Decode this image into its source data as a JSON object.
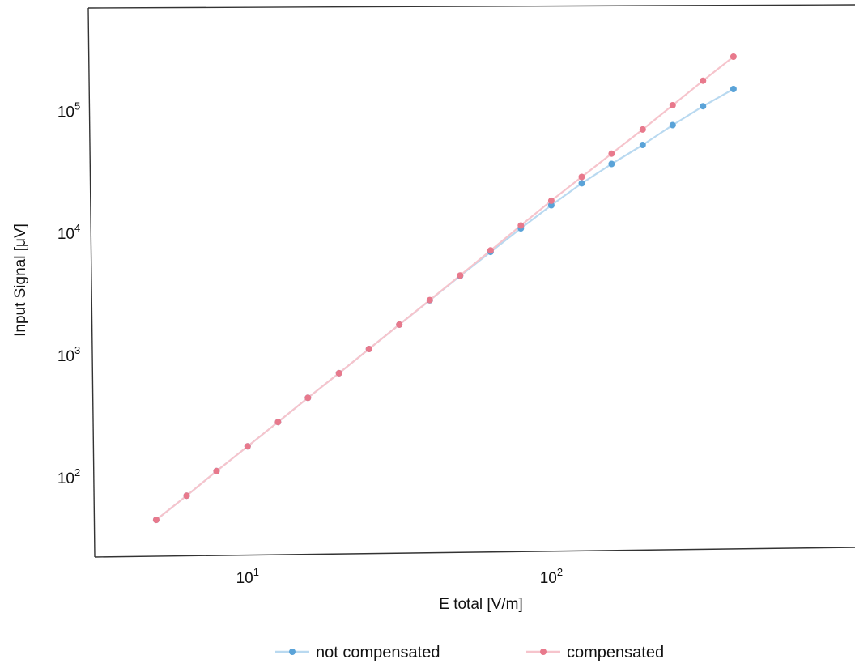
{
  "chart_data": {
    "type": "line",
    "title": "",
    "xlabel": "E total [V/m]",
    "ylabel": "Input Signal [μV]",
    "xscale": "log",
    "yscale": "log",
    "xlim": [
      3.1,
      1000
    ],
    "ylim": [
      23,
      700000
    ],
    "x_ticks": [
      {
        "value": 10,
        "base": "10",
        "exp": "1"
      },
      {
        "value": 100,
        "base": "10",
        "exp": "2"
      }
    ],
    "y_ticks": [
      {
        "value": 100,
        "base": "10",
        "exp": "2"
      },
      {
        "value": 1000,
        "base": "10",
        "exp": "3"
      },
      {
        "value": 10000,
        "base": "10",
        "exp": "4"
      },
      {
        "value": 100000,
        "base": "10",
        "exp": "5"
      }
    ],
    "grid": false,
    "legend_position": "bottom",
    "series": [
      {
        "name": "not compensated",
        "color": "#5aa3d8",
        "line_color": "#b9d9f0",
        "points": [
          [
            5.0,
            45
          ],
          [
            6.3,
            71
          ],
          [
            7.9,
            113
          ],
          [
            10.0,
            180
          ],
          [
            12.6,
            285
          ],
          [
            15.8,
            450
          ],
          [
            20.0,
            715
          ],
          [
            25.1,
            1130
          ],
          [
            31.6,
            1790
          ],
          [
            39.8,
            2830
          ],
          [
            50.1,
            4480
          ],
          [
            63.1,
            7050
          ],
          [
            79.4,
            11000
          ],
          [
            100,
            17000
          ],
          [
            126,
            25700
          ],
          [
            158,
            37000
          ],
          [
            200,
            53000
          ],
          [
            251,
            77000
          ],
          [
            316,
            110000
          ],
          [
            398,
            152000
          ]
        ]
      },
      {
        "name": "compensated",
        "color": "#e8798c",
        "line_color": "#f6c4cc",
        "points": [
          [
            5.0,
            45
          ],
          [
            6.3,
            71
          ],
          [
            7.9,
            113
          ],
          [
            10.0,
            180
          ],
          [
            12.6,
            285
          ],
          [
            15.8,
            450
          ],
          [
            20.0,
            715
          ],
          [
            25.1,
            1130
          ],
          [
            31.6,
            1790
          ],
          [
            39.8,
            2840
          ],
          [
            50.1,
            4520
          ],
          [
            63.1,
            7250
          ],
          [
            79.4,
            11600
          ],
          [
            100,
            18500
          ],
          [
            126,
            29000
          ],
          [
            158,
            45000
          ],
          [
            200,
            71000
          ],
          [
            251,
            112000
          ],
          [
            316,
            178000
          ],
          [
            398,
            280000
          ]
        ]
      }
    ]
  }
}
